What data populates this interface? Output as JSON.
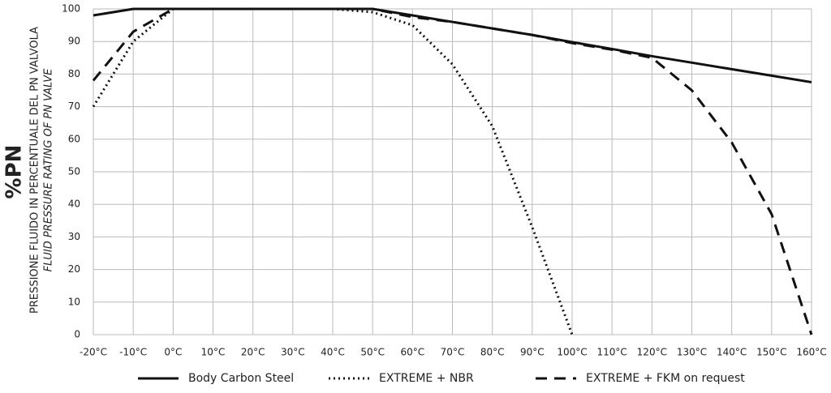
{
  "chart_data": {
    "type": "line",
    "y_label_main": "%PN",
    "y_label": "PRESSIONE FLUIDO IN PERCENTUALE DEL PN VALVOLA",
    "y_label_en": "FLUID PRESSURE RATING OF PN VALVE",
    "x": [
      -20,
      -10,
      0,
      10,
      20,
      30,
      40,
      50,
      60,
      70,
      80,
      90,
      100,
      110,
      120,
      130,
      140,
      150,
      160
    ],
    "xlim": [
      -20,
      160
    ],
    "xticks": [
      {
        "value": -20,
        "label": "-20°C"
      },
      {
        "value": -10,
        "label": "-10°C"
      },
      {
        "value": 0,
        "label": "0°C"
      },
      {
        "value": 10,
        "label": "10°C"
      },
      {
        "value": 20,
        "label": "20°C"
      },
      {
        "value": 30,
        "label": "30°C"
      },
      {
        "value": 40,
        "label": "40°C"
      },
      {
        "value": 50,
        "label": "50°C"
      },
      {
        "value": 60,
        "label": "60°C"
      },
      {
        "value": 70,
        "label": "70°C"
      },
      {
        "value": 80,
        "label": "80°C"
      },
      {
        "value": 90,
        "label": "90°C"
      },
      {
        "value": 100,
        "label": "100°C"
      },
      {
        "value": 110,
        "label": "110°C"
      },
      {
        "value": 120,
        "label": "120°C"
      },
      {
        "value": 130,
        "label": "130°C"
      },
      {
        "value": 140,
        "label": "140°C"
      },
      {
        "value": 150,
        "label": "150°C"
      },
      {
        "value": 160,
        "label": "160°C"
      }
    ],
    "ylim": [
      0,
      100
    ],
    "yticks": [
      0,
      10,
      20,
      30,
      40,
      50,
      60,
      70,
      80,
      90,
      100
    ],
    "grid": true,
    "legend": "bottom",
    "series": [
      {
        "name": "Body Carbon Steel",
        "color": "#111111",
        "style": "solid",
        "values": [
          98,
          100,
          100,
          100,
          100,
          100,
          100,
          100,
          98,
          96,
          94,
          92,
          89.8,
          87.7,
          85.5,
          83.5,
          81.5,
          79.5,
          77.5
        ]
      },
      {
        "name": "EXTREME + NBR",
        "color": "#111111",
        "style": "dotted",
        "values": [
          70,
          90,
          100,
          100,
          100,
          100,
          100,
          99,
          95,
          83,
          64,
          33,
          0,
          null,
          null,
          null,
          null,
          null,
          null
        ]
      },
      {
        "name": "EXTREME + FKM on request",
        "color": "#111111",
        "style": "dashed",
        "values": [
          78,
          93,
          100,
          100,
          100,
          100,
          100,
          100,
          97.5,
          96,
          94,
          92,
          89.5,
          87.5,
          85,
          75,
          59,
          37,
          0
        ]
      }
    ]
  }
}
